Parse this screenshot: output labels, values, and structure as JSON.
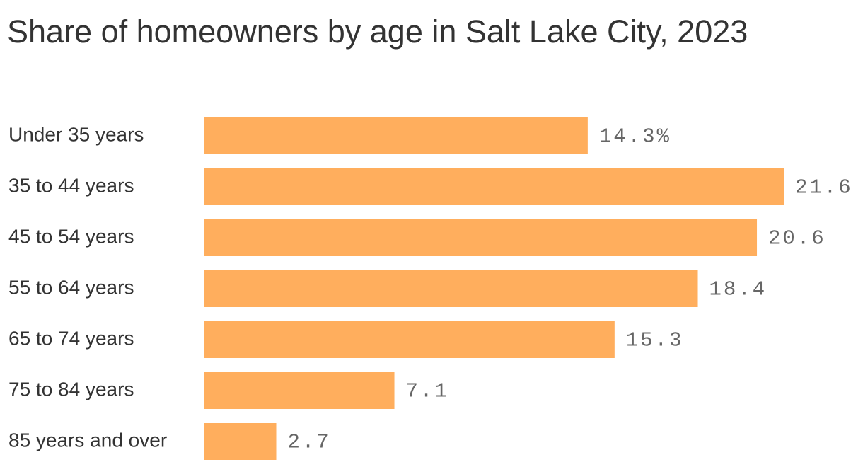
{
  "chart_data": {
    "type": "bar",
    "orientation": "horizontal",
    "title": "Share of homeowners by age in Salt Lake City, 2023",
    "categories": [
      "Under 35 years",
      "35 to 44 years",
      "45 to 54 years",
      "55 to 64 years",
      "65 to 74 years",
      "75 to 84 years",
      "85 years and over"
    ],
    "values": [
      14.3,
      21.6,
      20.6,
      18.4,
      15.3,
      7.1,
      2.7
    ],
    "value_labels": [
      "14.3%",
      "21.6",
      "20.6",
      "18.4",
      "15.3",
      "7.1",
      "2.7"
    ],
    "color": "#ffae5d"
  }
}
